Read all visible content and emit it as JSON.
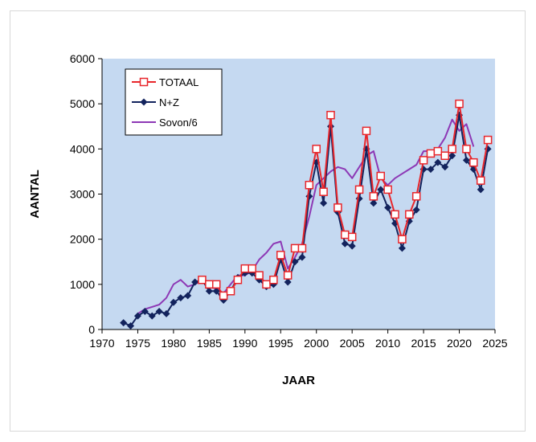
{
  "colors": {
    "plot_bg": "#c5d9f1",
    "totaal": "#e8262b",
    "nz": "#13235d",
    "sovon": "#8d38b5"
  },
  "chart_data": {
    "type": "line",
    "xlabel": "JAAR",
    "ylabel": "AANTAL",
    "xlim": [
      1970,
      2025
    ],
    "ylim": [
      0,
      6000
    ],
    "x_ticks": [
      "1970",
      "1975",
      "1980",
      "1985",
      "1990",
      "1995",
      "2000",
      "2005",
      "2010",
      "2015",
      "2020",
      "2025"
    ],
    "y_ticks": [
      "0",
      "1000",
      "2000",
      "3000",
      "4000",
      "5000",
      "6000"
    ],
    "legend_position": "top-left",
    "grid": false,
    "series": [
      {
        "name": "TOTAAL",
        "marker": "open-square",
        "x": [
          1984,
          1985,
          1986,
          1987,
          1988,
          1989,
          1990,
          1991,
          1992,
          1993,
          1994,
          1995,
          1996,
          1997,
          1998,
          1999,
          2000,
          2001,
          2002,
          2003,
          2004,
          2005,
          2006,
          2007,
          2008,
          2009,
          2010,
          2011,
          2012,
          2013,
          2014,
          2015,
          2016,
          2017,
          2018,
          2019,
          2020,
          2021,
          2022,
          2023,
          2024
        ],
        "y": [
          1100,
          1000,
          1000,
          750,
          850,
          1100,
          1350,
          1350,
          1200,
          1000,
          1100,
          1650,
          1200,
          1800,
          1800,
          3200,
          4000,
          3050,
          4750,
          2700,
          2100,
          2050,
          3100,
          4400,
          2950,
          3400,
          3100,
          2550,
          2000,
          2550,
          2950,
          3750,
          3900,
          3950,
          3850,
          4000,
          5000,
          4000,
          3700,
          3300,
          4200
        ]
      },
      {
        "name": "N+Z",
        "marker": "filled-diamond",
        "x": [
          1973,
          1974,
          1975,
          1976,
          1977,
          1978,
          1979,
          1980,
          1981,
          1982,
          1983,
          1984,
          1985,
          1986,
          1987,
          1988,
          1989,
          1990,
          1991,
          1992,
          1993,
          1994,
          1995,
          1996,
          1997,
          1998,
          1999,
          2000,
          2001,
          2002,
          2003,
          2004,
          2005,
          2006,
          2007,
          2008,
          2009,
          2010,
          2011,
          2012,
          2013,
          2014,
          2015,
          2016,
          2017,
          2018,
          2019,
          2020,
          2021,
          2022,
          2023,
          2024
        ],
        "y": [
          150,
          80,
          300,
          400,
          300,
          400,
          350,
          600,
          700,
          750,
          1050,
          1100,
          850,
          850,
          650,
          850,
          1150,
          1250,
          1250,
          1100,
          950,
          1000,
          1550,
          1050,
          1500,
          1600,
          2950,
          3700,
          2800,
          4500,
          2600,
          1900,
          1850,
          2900,
          4000,
          2800,
          3100,
          2700,
          2350,
          1800,
          2400,
          2650,
          3550,
          3550,
          3700,
          3600,
          3850,
          4750,
          3750,
          3550,
          3100,
          4000
        ]
      },
      {
        "name": "Sovon/6",
        "marker": "none",
        "x": [
          1975,
          1976,
          1977,
          1978,
          1979,
          1980,
          1981,
          1982,
          1983,
          1984,
          1985,
          1986,
          1987,
          1988,
          1989,
          1990,
          1991,
          1992,
          1993,
          1994,
          1995,
          1996,
          1997,
          1998,
          1999,
          2000,
          2001,
          2002,
          2003,
          2004,
          2005,
          2006,
          2007,
          2008,
          2009,
          2010,
          2011,
          2012,
          2013,
          2014,
          2015,
          2016,
          2017,
          2018,
          2019,
          2020,
          2021,
          2022
        ],
        "y": [
          350,
          450,
          500,
          550,
          700,
          1000,
          1100,
          950,
          1000,
          1100,
          950,
          900,
          800,
          1000,
          1200,
          1200,
          1300,
          1550,
          1700,
          1900,
          1950,
          1350,
          1600,
          1900,
          2500,
          3200,
          3350,
          3500,
          3600,
          3550,
          3350,
          3600,
          3850,
          3950,
          3350,
          3200,
          3350,
          3450,
          3550,
          3650,
          3950,
          3950,
          4000,
          4250,
          4650,
          4400,
          4550,
          4050
        ]
      }
    ]
  }
}
